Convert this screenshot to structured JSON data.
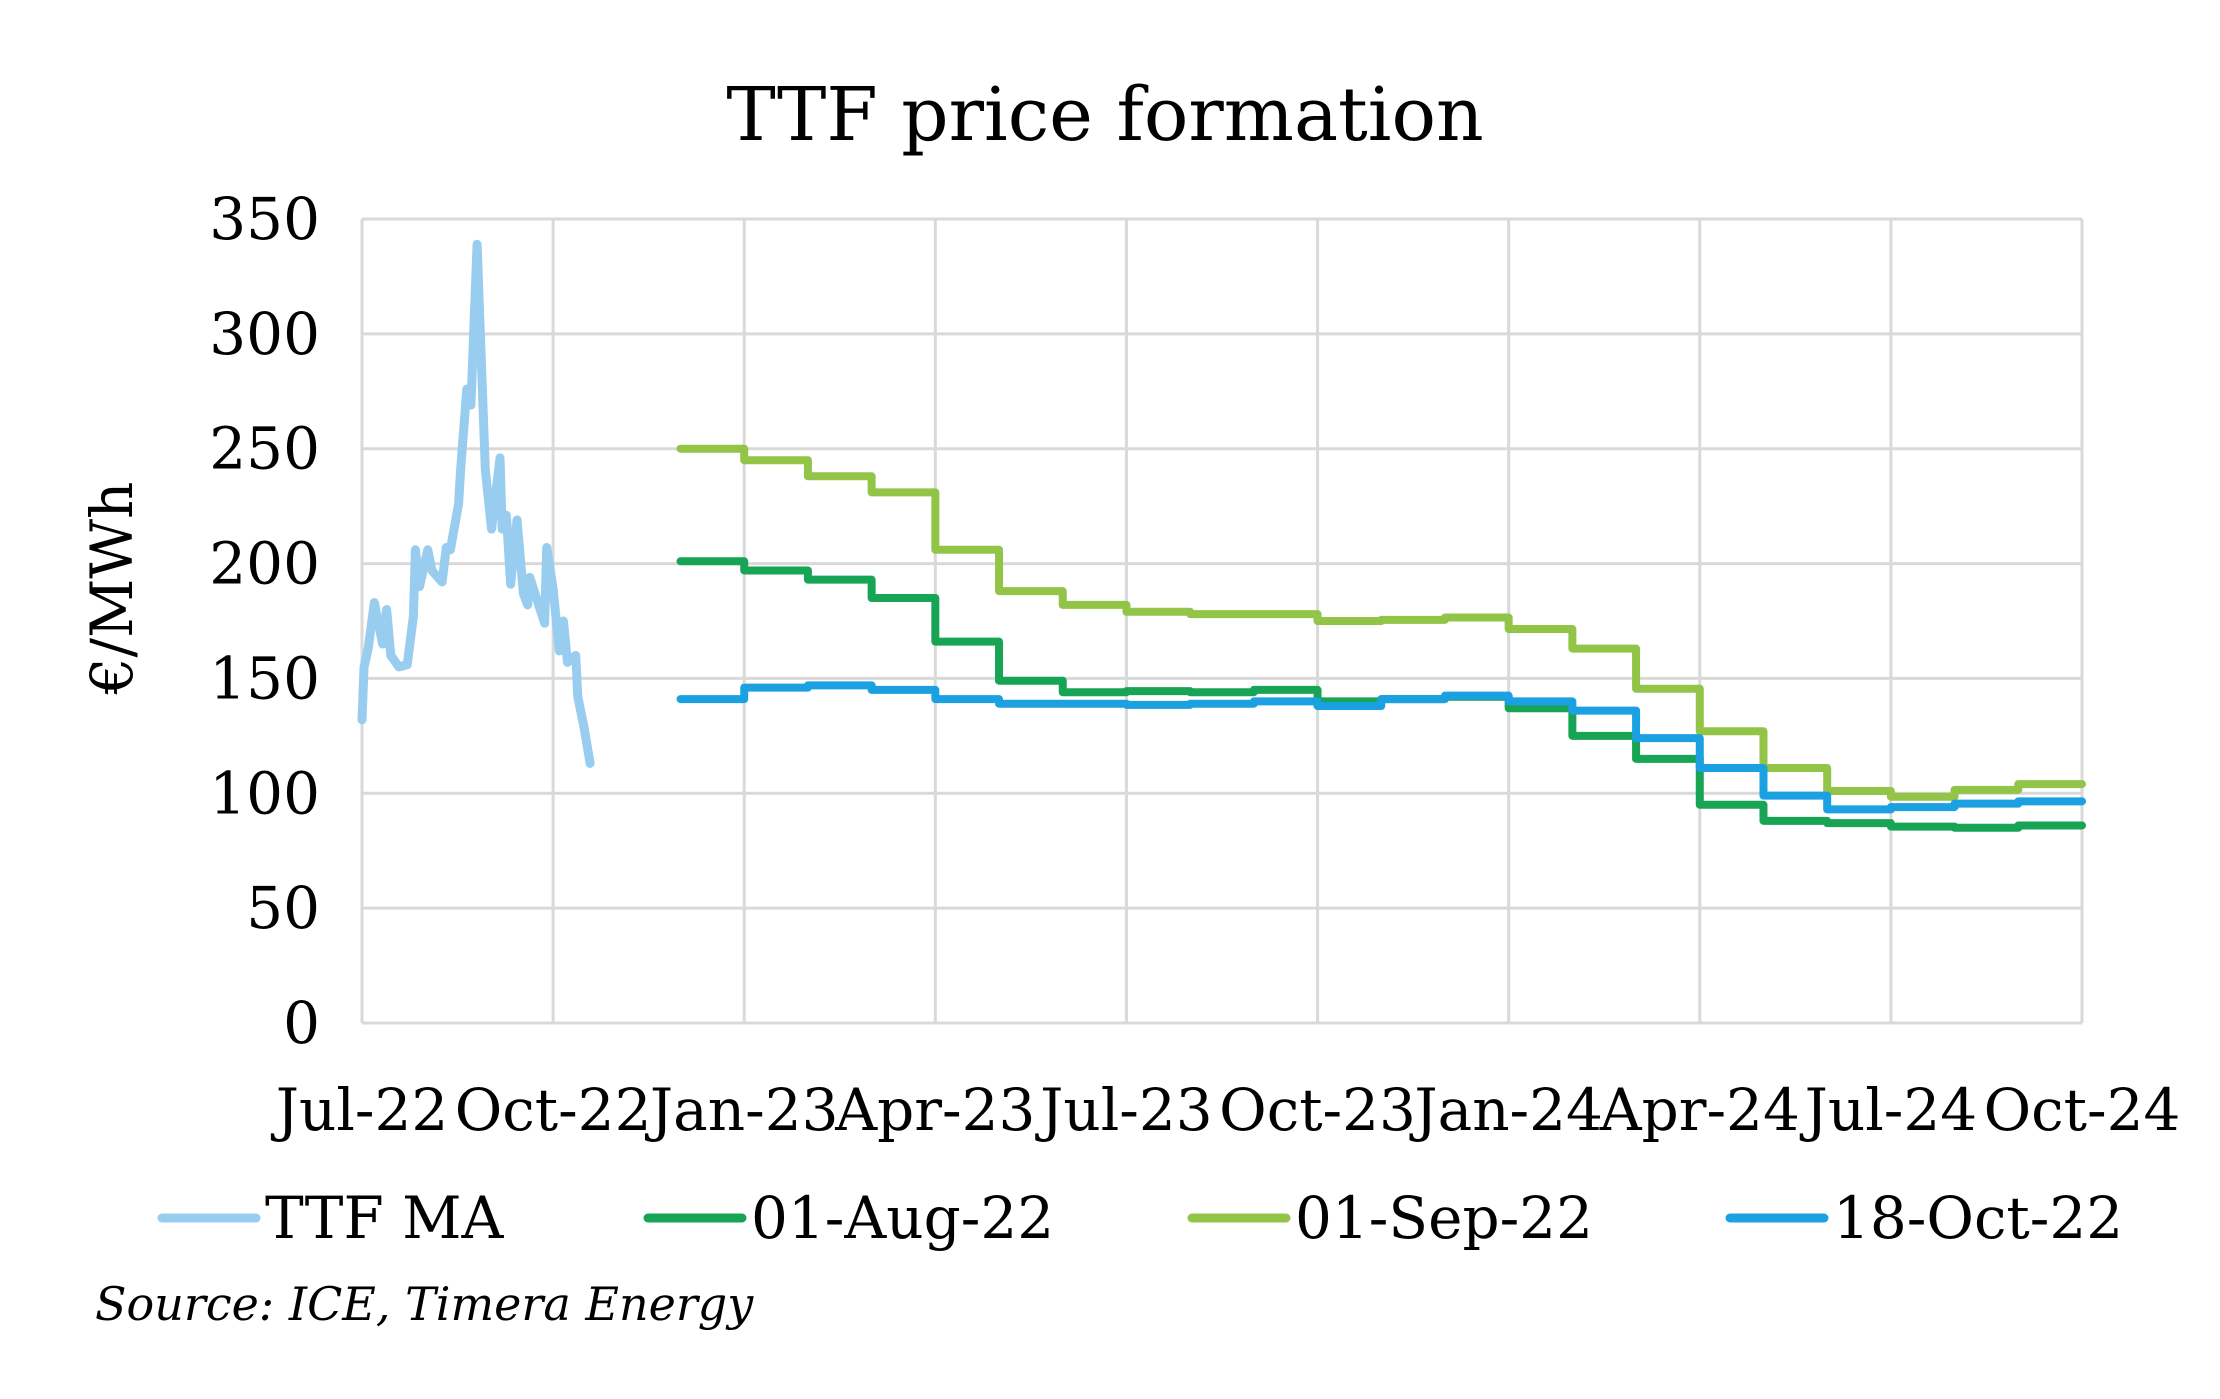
{
  "chart_data": {
    "type": "line",
    "title": "TTF price formation",
    "ylabel": "€/MWh",
    "xlabel": "",
    "ylim": [
      0,
      350
    ],
    "yticks": [
      0,
      50,
      100,
      150,
      200,
      250,
      300,
      350
    ],
    "xlim": [
      "2022-07-01",
      "2024-10-01"
    ],
    "xticks": [
      {
        "date": "2022-07-01",
        "label": "Jul-22"
      },
      {
        "date": "2022-10-01",
        "label": "Oct-22"
      },
      {
        "date": "2023-01-01",
        "label": "Jan-23"
      },
      {
        "date": "2023-04-01",
        "label": "Apr-23"
      },
      {
        "date": "2023-07-01",
        "label": "Jul-23"
      },
      {
        "date": "2023-10-01",
        "label": "Oct-23"
      },
      {
        "date": "2024-01-01",
        "label": "Jan-24"
      },
      {
        "date": "2024-04-01",
        "label": "Apr-24"
      },
      {
        "date": "2024-07-01",
        "label": "Jul-24"
      },
      {
        "date": "2024-10-01",
        "label": "Oct-24"
      }
    ],
    "grid": true,
    "legend_position": "bottom",
    "source": "Source: ICE, Timera Energy",
    "series": [
      {
        "name": "TTF MA",
        "color": "#99CDEF",
        "style": "daily",
        "points": [
          [
            "2022-07-01",
            132
          ],
          [
            "2022-07-02",
            155
          ],
          [
            "2022-07-04",
            163
          ],
          [
            "2022-07-07",
            183
          ],
          [
            "2022-07-11",
            165
          ],
          [
            "2022-07-13",
            180
          ],
          [
            "2022-07-15",
            160
          ],
          [
            "2022-07-19",
            155
          ],
          [
            "2022-07-23",
            156
          ],
          [
            "2022-07-26",
            177
          ],
          [
            "2022-07-27",
            206
          ],
          [
            "2022-07-29",
            190
          ],
          [
            "2022-08-02",
            206
          ],
          [
            "2022-08-04",
            197
          ],
          [
            "2022-08-09",
            192
          ],
          [
            "2022-08-11",
            207
          ],
          [
            "2022-08-13",
            206
          ],
          [
            "2022-08-17",
            226
          ],
          [
            "2022-08-18",
            241
          ],
          [
            "2022-08-21",
            276
          ],
          [
            "2022-08-23",
            269
          ],
          [
            "2022-08-26",
            339
          ],
          [
            "2022-08-30",
            241
          ],
          [
            "2022-09-02",
            215
          ],
          [
            "2022-09-06",
            246
          ],
          [
            "2022-09-07",
            215
          ],
          [
            "2022-09-09",
            221
          ],
          [
            "2022-09-11",
            191
          ],
          [
            "2022-09-14",
            219
          ],
          [
            "2022-09-17",
            187
          ],
          [
            "2022-09-19",
            182
          ],
          [
            "2022-09-20",
            194
          ],
          [
            "2022-09-27",
            174
          ],
          [
            "2022-09-28",
            207
          ],
          [
            "2022-10-01",
            189
          ],
          [
            "2022-10-04",
            162
          ],
          [
            "2022-10-06",
            175
          ],
          [
            "2022-10-08",
            157
          ],
          [
            "2022-10-12",
            160
          ],
          [
            "2022-10-13",
            142
          ],
          [
            "2022-10-16",
            129
          ],
          [
            "2022-10-19",
            113
          ]
        ]
      },
      {
        "name": "01-Aug-22",
        "color": "#17A455",
        "style": "monthly-step",
        "start_month": "2022-12",
        "values": [
          201,
          197,
          193,
          185,
          166,
          149,
          144,
          144.5,
          144,
          145,
          140,
          141,
          142,
          137,
          125,
          115,
          95,
          88,
          87,
          85.5,
          85,
          86
        ]
      },
      {
        "name": "01-Sep-22",
        "color": "#92C448",
        "style": "monthly-step",
        "start_month": "2022-12",
        "values": [
          250,
          245,
          238,
          231,
          206,
          188,
          182,
          179,
          178,
          178,
          175,
          175.5,
          176.5,
          171.5,
          163,
          145.5,
          127,
          111,
          101,
          98.5,
          101.5,
          104
        ]
      },
      {
        "name": "18-Oct-22",
        "color": "#1BA1E2",
        "style": "monthly-step",
        "start_month": "2022-12",
        "values": [
          141,
          146,
          147,
          145,
          141,
          139,
          139,
          138.5,
          139,
          140,
          138,
          141,
          142.5,
          140,
          136,
          124,
          111,
          99,
          93,
          94,
          95.5,
          96.5
        ]
      }
    ]
  }
}
